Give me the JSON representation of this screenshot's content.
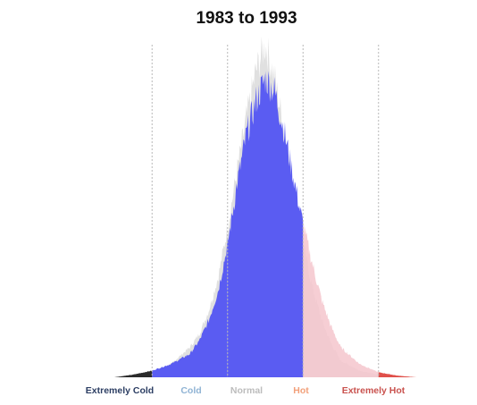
{
  "chart_data": {
    "type": "area",
    "title": "1983 to 1993",
    "xlabel": "",
    "ylabel": "",
    "grid": false,
    "legend": "none",
    "x": [
      -4.0,
      -3.5,
      -3.0,
      -2.5,
      -2.0,
      -1.75,
      -1.5,
      -1.25,
      -1.0,
      -0.75,
      -0.5,
      -0.25,
      0.0,
      0.25,
      0.5,
      0.75,
      1.0,
      1.25,
      1.5,
      1.75,
      2.0,
      2.5,
      3.0,
      3.5,
      4.0
    ],
    "series": [
      {
        "role": "baseline",
        "color": "#e0e0e0",
        "values": [
          0.0,
          0.005,
          0.015,
          0.04,
          0.09,
          0.13,
          0.2,
          0.3,
          0.45,
          0.62,
          0.78,
          0.92,
          1.0,
          0.9,
          0.74,
          0.56,
          0.4,
          0.27,
          0.17,
          0.1,
          0.05,
          0.02,
          0.007,
          0.002,
          0.0
        ]
      },
      {
        "role": "period",
        "values": [
          0.0,
          0.008,
          0.02,
          0.04,
          0.07,
          0.11,
          0.17,
          0.26,
          0.4,
          0.58,
          0.73,
          0.83,
          0.9,
          0.86,
          0.74,
          0.6,
          0.46,
          0.34,
          0.23,
          0.15,
          0.09,
          0.04,
          0.015,
          0.005,
          0.0
        ]
      }
    ],
    "thresholds": [
      -3.0,
      -1.0,
      1.0,
      3.0
    ],
    "categories": [
      {
        "label": "Extremely Cold",
        "color": "#3e3d8f",
        "text_color": "#2c3e63"
      },
      {
        "label": "Cold",
        "color": "#5a5cf2",
        "text_color": "#8fb3d4"
      },
      {
        "label": "Normal",
        "color": "#5a5cf2",
        "text_color": "#bcbcbc"
      },
      {
        "label": "Hot",
        "color": "#f5c6cc",
        "text_color": "#f2a07a"
      },
      {
        "label": "Extremely Hot",
        "color": "#e0504a",
        "text_color": "#c9524e"
      }
    ],
    "extreme_cold_fill": "#2b2b2b"
  }
}
